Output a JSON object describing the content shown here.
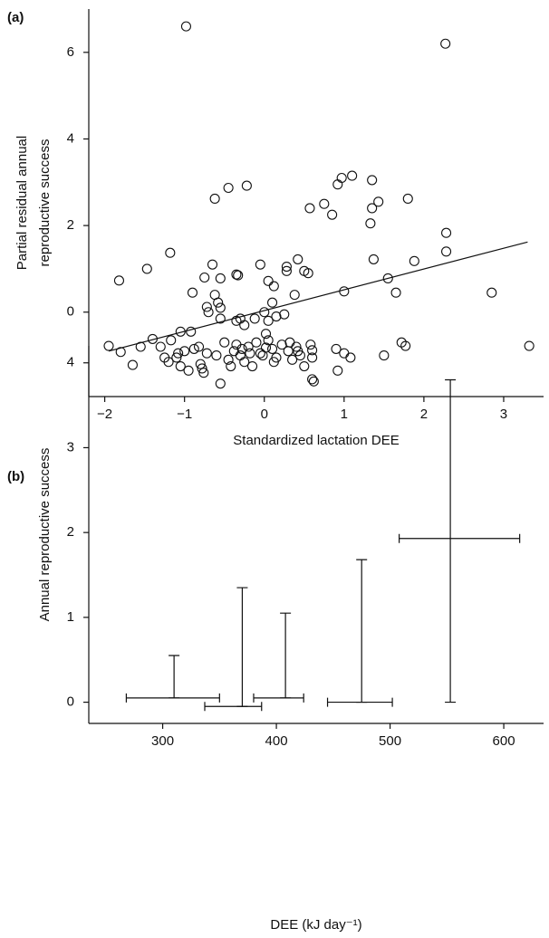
{
  "chart_data": [
    {
      "type": "scatter",
      "panel": "(a)",
      "xlabel": "Standardized lactation DEE",
      "ylabel": [
        "Partial residual annual",
        "reproductive success"
      ],
      "xlim": [
        -2.2,
        3.5
      ],
      "ylim": [
        -1.95,
        7
      ],
      "xticks": [
        {
          "value": -2,
          "label": "−2"
        },
        {
          "value": -1,
          "label": "−1"
        },
        0,
        1,
        2,
        3
      ],
      "yticks": [
        0,
        2,
        4,
        6
      ],
      "x": [
        -0.98,
        2.27,
        -0.62,
        -0.45,
        -0.22,
        0.57,
        0.75,
        0.85,
        0.92,
        0.97,
        1.1,
        1.35,
        1.35,
        1.43,
        1.33,
        1.8,
        2.28,
        2.28,
        1.88,
        1.37,
        1.55,
        1.65,
        2.85,
        3.32,
        1.0,
        -1.18,
        -1.47,
        -1.82,
        -0.65,
        -0.75,
        -0.55,
        -0.9,
        -0.35,
        -0.33,
        -0.05,
        0.05,
        0.12,
        0.28,
        0.28,
        0.42,
        0.5,
        0.55,
        0.38,
        -0.62,
        -0.58,
        -0.72,
        -0.7,
        -0.55,
        -0.55,
        -0.3,
        -0.35,
        -0.25,
        0.1,
        0.15,
        0.25,
        0.05,
        0.0,
        -0.12,
        0.02,
        -1.95,
        -1.8,
        -1.65,
        -1.55,
        -1.4,
        -1.3,
        -1.25,
        -1.2,
        -1.17,
        -1.1,
        -1.08,
        -1.05,
        -1.05,
        -1.0,
        -0.95,
        -0.92,
        -0.88,
        -0.82,
        -0.8,
        -0.78,
        -0.76,
        -0.72,
        -0.6,
        -0.55,
        -0.5,
        -0.45,
        -0.42,
        -0.38,
        -0.35,
        -0.3,
        -0.28,
        -0.25,
        -0.2,
        -0.18,
        -0.15,
        -0.1,
        -0.05,
        -0.02,
        0.02,
        0.05,
        0.1,
        0.12,
        0.15,
        0.22,
        0.3,
        0.32,
        0.35,
        0.4,
        0.42,
        0.45,
        0.5,
        0.58,
        0.6,
        0.6,
        0.62,
        0.6,
        0.9,
        0.92,
        1.0,
        1.08,
        1.5,
        1.72,
        1.77
      ],
      "y": [
        6.6,
        6.2,
        2.62,
        2.87,
        2.92,
        2.4,
        2.5,
        2.25,
        2.95,
        3.1,
        3.15,
        3.05,
        2.4,
        2.55,
        2.05,
        2.62,
        1.83,
        1.4,
        1.18,
        1.22,
        0.78,
        0.45,
        0.45,
        -0.78,
        0.48,
        1.37,
        1.0,
        0.73,
        1.1,
        0.8,
        0.78,
        0.45,
        0.87,
        0.85,
        1.1,
        0.72,
        0.6,
        0.95,
        1.05,
        1.22,
        0.95,
        0.9,
        0.4,
        0.4,
        0.22,
        0.12,
        0.0,
        0.1,
        -0.15,
        -0.15,
        -0.2,
        -0.3,
        0.22,
        -0.1,
        -0.05,
        -0.2,
        0.0,
        -0.15,
        -0.5,
        -0.78,
        -0.92,
        -1.22,
        -0.8,
        -0.62,
        -0.8,
        -1.05,
        -1.15,
        -0.65,
        -1.05,
        -0.95,
        -0.45,
        -1.25,
        -0.9,
        -1.35,
        -0.45,
        -0.85,
        -0.8,
        -1.2,
        -1.3,
        -1.4,
        -0.95,
        -1.0,
        -1.65,
        -0.7,
        -1.1,
        -1.25,
        -0.9,
        -0.75,
        -1.0,
        -0.85,
        -1.15,
        -0.8,
        -0.95,
        -1.25,
        -0.7,
        -0.95,
        -1.0,
        -0.82,
        -0.65,
        -0.85,
        -1.15,
        -1.05,
        -0.75,
        -0.9,
        -0.7,
        -1.1,
        -0.8,
        -0.9,
        -1.0,
        -1.25,
        -0.75,
        -0.88,
        -1.55,
        -1.6,
        -1.05,
        -0.85,
        -1.35,
        -0.95,
        -1.05,
        -1.0,
        -0.7,
        -0.78
      ],
      "fit": {
        "x": [
          -1.95,
          3.3
        ],
        "y": [
          -0.9,
          1.62
        ]
      }
    },
    {
      "type": "errorbar",
      "panel": "(b)",
      "xlabel": "DEE (kJ day⁻¹)",
      "ylabel": [
        "Annual reproductive success"
      ],
      "xlim": [
        235,
        635
      ],
      "ylim": [
        -0.25,
        4.2
      ],
      "xticks": [
        300,
        400,
        500,
        600
      ],
      "yticks": [
        0,
        1,
        2,
        3,
        4
      ],
      "x": [
        310,
        370,
        408,
        475,
        553
      ],
      "x_err_minus": [
        42,
        33,
        28,
        30,
        45
      ],
      "x_err_plus": [
        40,
        17,
        16,
        27,
        61
      ],
      "y": [
        0.05,
        -0.05,
        0.05,
        0,
        1.93
      ],
      "y_err_minus": [
        0,
        0,
        0,
        0,
        1.93
      ],
      "y_err_plus": [
        0.5,
        1.4,
        1.0,
        1.68,
        1.87
      ]
    }
  ]
}
